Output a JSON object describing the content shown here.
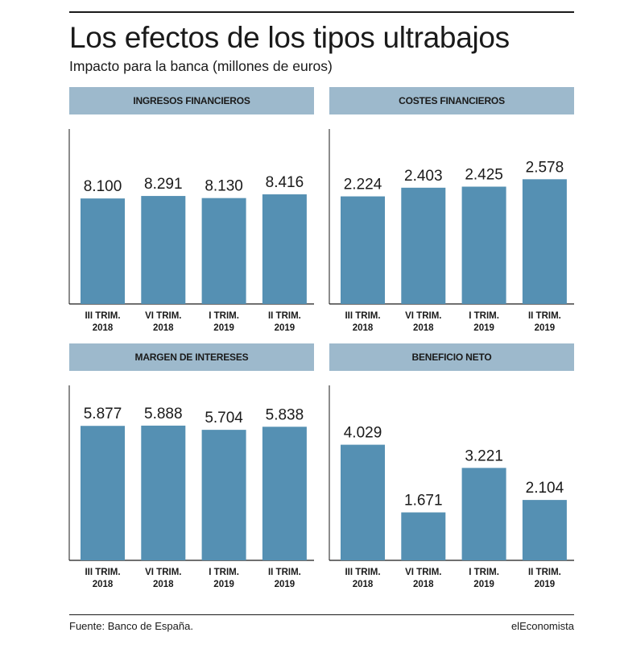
{
  "header": {
    "title": "Los efectos de los tipos ultrabajos",
    "subtitle": "Impacto para la banca (millones de euros)"
  },
  "footer": {
    "source": "Fuente: Banco de España.",
    "brand": "elEconomista"
  },
  "colors": {
    "bar": "#5590b3",
    "header_band": "#9db9cc",
    "axis": "#1a1a1a",
    "text": "#1a1a1a"
  },
  "chart_data": [
    {
      "type": "bar",
      "title": "INGRESOS FINANCIEROS",
      "categories": [
        [
          "III TRIM.",
          "2018"
        ],
        [
          "VI TRIM.",
          "2018"
        ],
        [
          "I TRIM.",
          "2019"
        ],
        [
          "II TRIM.",
          "2019"
        ]
      ],
      "values": [
        8100,
        8291,
        8130,
        8416
      ],
      "value_labels": [
        "8.100",
        "8.291",
        "8.130",
        "8.416"
      ],
      "ylim": [
        0,
        13000
      ]
    },
    {
      "type": "bar",
      "title": "COSTES FINANCIEROS",
      "categories": [
        [
          "III TRIM.",
          "2018"
        ],
        [
          "VI TRIM.",
          "2018"
        ],
        [
          "I TRIM.",
          "2019"
        ],
        [
          "II TRIM.",
          "2019"
        ]
      ],
      "values": [
        2224,
        2403,
        2425,
        2578
      ],
      "value_labels": [
        "2.224",
        "2.403",
        "2.425",
        "2.578"
      ],
      "ylim": [
        0,
        3500
      ]
    },
    {
      "type": "bar",
      "title": "MARGEN DE INTERESES",
      "categories": [
        [
          "III TRIM.",
          "2018"
        ],
        [
          "VI TRIM.",
          "2018"
        ],
        [
          "I TRIM.",
          "2019"
        ],
        [
          "II TRIM.",
          "2019"
        ]
      ],
      "values": [
        5877,
        5888,
        5704,
        5838
      ],
      "value_labels": [
        "5.877",
        "5.888",
        "5.704",
        "5.838"
      ],
      "ylim": [
        0,
        7400
      ]
    },
    {
      "type": "bar",
      "title": "BENEFICIO NETO",
      "categories": [
        [
          "III TRIM.",
          "2018"
        ],
        [
          "VI TRIM.",
          "2018"
        ],
        [
          "I TRIM.",
          "2019"
        ],
        [
          "II TRIM.",
          "2019"
        ]
      ],
      "values": [
        4029,
        1671,
        3221,
        2104
      ],
      "value_labels": [
        "4.029",
        "1.671",
        "3.221",
        "2.104"
      ],
      "ylim": [
        0,
        5900
      ]
    }
  ]
}
